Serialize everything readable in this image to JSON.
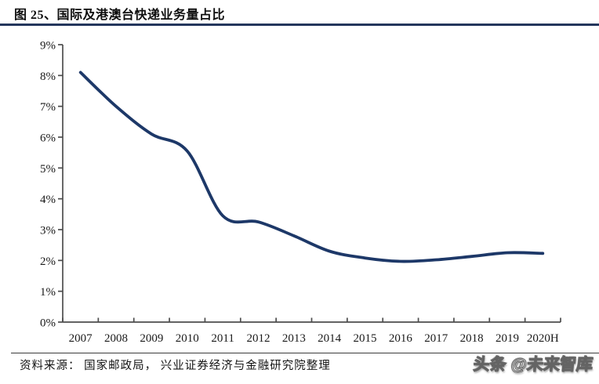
{
  "header": {
    "title": "图 25、国际及港澳台快递业务量占比"
  },
  "chart_data": {
    "type": "line",
    "title": "国际及港澳台快递业务量占比",
    "categories": [
      "2007",
      "2008",
      "2009",
      "2010",
      "2011",
      "2012",
      "2013",
      "2014",
      "2015",
      "2016",
      "2017",
      "2018",
      "2019",
      "2020H"
    ],
    "series": [
      {
        "name": "国际及港澳台快递业务量占比",
        "values": [
          8.1,
          7.0,
          6.1,
          5.55,
          3.45,
          3.25,
          2.8,
          2.3,
          2.08,
          1.97,
          2.02,
          2.13,
          2.25,
          2.23
        ]
      }
    ],
    "y_ticks": [
      "0%",
      "1%",
      "2%",
      "3%",
      "4%",
      "5%",
      "6%",
      "7%",
      "8%",
      "9%"
    ],
    "ylim": [
      0,
      9
    ],
    "y_unit": "%",
    "grid": false,
    "legend": "none",
    "line_color": "#1d3868",
    "smoothed": true
  },
  "footer": {
    "source": "资料来源： 国家邮政局， 兴业证券经济与金融研究院整理",
    "watermark": "头条 @未来智库"
  },
  "colors": {
    "accent_line": "#1d3868",
    "title_rule": "#24365c",
    "axis": "#4d4d4d",
    "tick_text": "#1a1a1a"
  }
}
